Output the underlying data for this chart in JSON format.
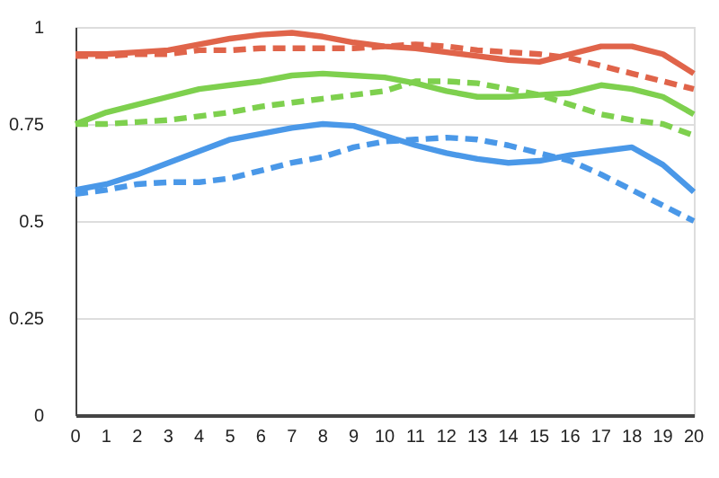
{
  "chart_data": {
    "type": "line",
    "x": [
      0,
      1,
      2,
      3,
      4,
      5,
      6,
      7,
      8,
      9,
      10,
      11,
      12,
      13,
      14,
      15,
      16,
      17,
      18,
      19,
      20
    ],
    "xlim": [
      0,
      20
    ],
    "xticks": [
      0,
      1,
      2,
      3,
      4,
      5,
      6,
      7,
      8,
      9,
      10,
      11,
      12,
      13,
      14,
      15,
      16,
      17,
      18,
      19,
      20
    ],
    "ylim": [
      0,
      1
    ],
    "yticks": [
      0,
      0.25,
      0.5,
      0.75,
      1
    ],
    "grid": "y",
    "marker": "none",
    "series": [
      {
        "color": "#e0644a",
        "line_style": "solid",
        "values": [
          0.93,
          0.93,
          0.935,
          0.94,
          0.955,
          0.97,
          0.98,
          0.985,
          0.975,
          0.96,
          0.95,
          0.945,
          0.935,
          0.925,
          0.915,
          0.91,
          0.93,
          0.95,
          0.95,
          0.93,
          0.88
        ]
      },
      {
        "color": "#e0644a",
        "line_style": "dashed",
        "values": [
          0.925,
          0.925,
          0.93,
          0.93,
          0.94,
          0.94,
          0.945,
          0.945,
          0.945,
          0.945,
          0.95,
          0.955,
          0.95,
          0.94,
          0.935,
          0.93,
          0.92,
          0.9,
          0.88,
          0.86,
          0.84
        ]
      },
      {
        "color": "#7ed04e",
        "line_style": "solid",
        "values": [
          0.75,
          0.78,
          0.8,
          0.82,
          0.84,
          0.85,
          0.86,
          0.875,
          0.88,
          0.875,
          0.87,
          0.855,
          0.835,
          0.82,
          0.82,
          0.825,
          0.83,
          0.85,
          0.84,
          0.82,
          0.775
        ]
      },
      {
        "color": "#7ed04e",
        "line_style": "dashed",
        "values": [
          0.75,
          0.75,
          0.755,
          0.76,
          0.77,
          0.78,
          0.795,
          0.805,
          0.815,
          0.825,
          0.835,
          0.86,
          0.86,
          0.855,
          0.84,
          0.825,
          0.8,
          0.775,
          0.76,
          0.75,
          0.72
        ]
      },
      {
        "color": "#4a98e8",
        "line_style": "solid",
        "values": [
          0.58,
          0.595,
          0.62,
          0.65,
          0.68,
          0.71,
          0.725,
          0.74,
          0.75,
          0.745,
          0.72,
          0.695,
          0.675,
          0.66,
          0.65,
          0.655,
          0.67,
          0.68,
          0.69,
          0.645,
          0.575
        ]
      },
      {
        "color": "#4a98e8",
        "line_style": "dashed",
        "values": [
          0.57,
          0.58,
          0.595,
          0.6,
          0.6,
          0.61,
          0.63,
          0.65,
          0.665,
          0.69,
          0.705,
          0.71,
          0.715,
          0.71,
          0.695,
          0.675,
          0.655,
          0.62,
          0.58,
          0.54,
          0.5
        ]
      }
    ]
  }
}
